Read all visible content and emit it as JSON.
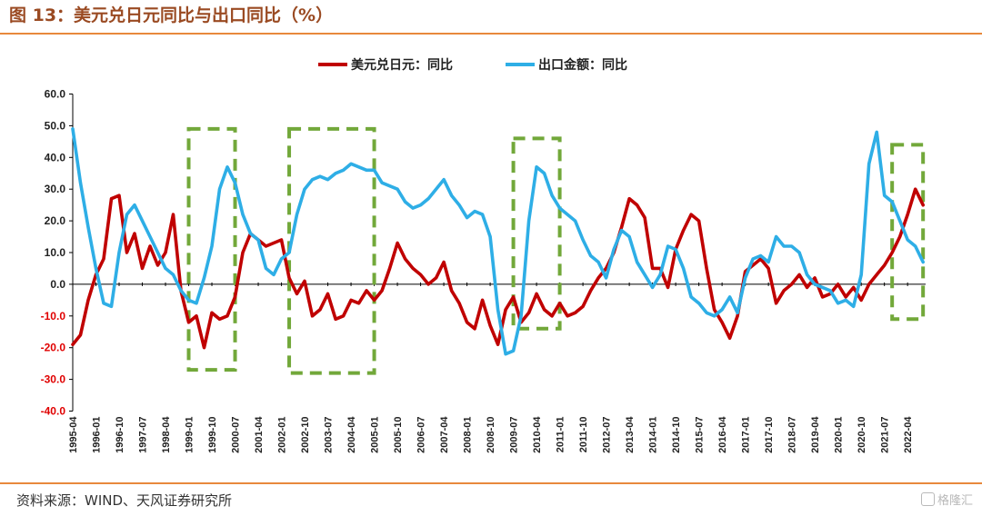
{
  "header": {
    "title": "图 13：美元兑日元同比与出口同比（%）"
  },
  "footer": {
    "source": "资料来源：WIND、天风证券研究所",
    "watermark": "格隆汇"
  },
  "colors": {
    "usdjpy": "#c00000",
    "exports": "#2eaee6",
    "box": "#72a83a",
    "negative_tick": "#e00000",
    "positive_tick": "#222222",
    "rule": "#e8893c"
  },
  "chart_data": {
    "type": "line",
    "legend_position": "top-center",
    "ylim": [
      -40,
      60
    ],
    "yticks": [
      "60.0",
      "50.0",
      "40.0",
      "30.0",
      "20.0",
      "10.0",
      "0.0",
      "-10.0",
      "-20.0",
      "-30.0",
      "-40.0"
    ],
    "xticks": [
      "1995-04",
      "1996-01",
      "1996-10",
      "1997-07",
      "1998-04",
      "1999-01",
      "1999-10",
      "2000-07",
      "2001-04",
      "2002-01",
      "2002-10",
      "2003-07",
      "2004-04",
      "2005-01",
      "2005-10",
      "2006-07",
      "2007-04",
      "2008-01",
      "2008-10",
      "2009-07",
      "2010-04",
      "2011-01",
      "2011-10",
      "2012-07",
      "2013-04",
      "2014-01",
      "2014-10",
      "2015-07",
      "2016-04",
      "2017-01",
      "2017-10",
      "2018-07",
      "2019-04",
      "2020-01",
      "2020-10",
      "2021-07",
      "2022-04"
    ],
    "series": [
      {
        "name": "美元兑日元：同比",
        "color": "#c00000",
        "points": [
          [
            "1995-04",
            -19
          ],
          [
            "1995-07",
            -16
          ],
          [
            "1995-10",
            -5
          ],
          [
            "1996-01",
            3
          ],
          [
            "1996-04",
            8
          ],
          [
            "1996-07",
            27
          ],
          [
            "1996-10",
            28
          ],
          [
            "1997-01",
            10
          ],
          [
            "1997-04",
            16
          ],
          [
            "1997-07",
            5
          ],
          [
            "1997-10",
            12
          ],
          [
            "1998-01",
            6
          ],
          [
            "1998-04",
            10
          ],
          [
            "1998-07",
            22
          ],
          [
            "1998-10",
            -2
          ],
          [
            "1999-01",
            -12
          ],
          [
            "1999-04",
            -10
          ],
          [
            "1999-07",
            -20
          ],
          [
            "1999-10",
            -9
          ],
          [
            "2000-01",
            -11
          ],
          [
            "2000-04",
            -10
          ],
          [
            "2000-07",
            -4
          ],
          [
            "2000-10",
            10
          ],
          [
            "2001-01",
            16
          ],
          [
            "2001-04",
            14
          ],
          [
            "2001-07",
            12
          ],
          [
            "2001-10",
            13
          ],
          [
            "2002-01",
            14
          ],
          [
            "2002-04",
            2
          ],
          [
            "2002-07",
            -3
          ],
          [
            "2002-10",
            1
          ],
          [
            "2003-01",
            -10
          ],
          [
            "2003-04",
            -8
          ],
          [
            "2003-07",
            -3
          ],
          [
            "2003-10",
            -11
          ],
          [
            "2004-01",
            -10
          ],
          [
            "2004-04",
            -5
          ],
          [
            "2004-07",
            -6
          ],
          [
            "2004-10",
            -2
          ],
          [
            "2005-01",
            -5
          ],
          [
            "2005-04",
            -2
          ],
          [
            "2005-07",
            5
          ],
          [
            "2005-10",
            13
          ],
          [
            "2006-01",
            8
          ],
          [
            "2006-04",
            5
          ],
          [
            "2006-07",
            3
          ],
          [
            "2006-10",
            0
          ],
          [
            "2007-01",
            2
          ],
          [
            "2007-04",
            7
          ],
          [
            "2007-07",
            -2
          ],
          [
            "2007-10",
            -6
          ],
          [
            "2008-01",
            -12
          ],
          [
            "2008-04",
            -14
          ],
          [
            "2008-07",
            -5
          ],
          [
            "2008-10",
            -13
          ],
          [
            "2009-01",
            -19
          ],
          [
            "2009-04",
            -8
          ],
          [
            "2009-07",
            -4
          ],
          [
            "2009-10",
            -12
          ],
          [
            "2010-01",
            -9
          ],
          [
            "2010-04",
            -3
          ],
          [
            "2010-07",
            -8
          ],
          [
            "2010-10",
            -10
          ],
          [
            "2011-01",
            -6
          ],
          [
            "2011-04",
            -10
          ],
          [
            "2011-07",
            -9
          ],
          [
            "2011-10",
            -7
          ],
          [
            "2012-01",
            -2
          ],
          [
            "2012-04",
            2
          ],
          [
            "2012-07",
            5
          ],
          [
            "2012-10",
            10
          ],
          [
            "2013-01",
            18
          ],
          [
            "2013-04",
            27
          ],
          [
            "2013-07",
            25
          ],
          [
            "2013-10",
            21
          ],
          [
            "2014-01",
            5
          ],
          [
            "2014-04",
            5
          ],
          [
            "2014-07",
            -1
          ],
          [
            "2014-10",
            11
          ],
          [
            "2015-01",
            17
          ],
          [
            "2015-04",
            22
          ],
          [
            "2015-07",
            20
          ],
          [
            "2015-10",
            5
          ],
          [
            "2016-01",
            -8
          ],
          [
            "2016-04",
            -12
          ],
          [
            "2016-07",
            -17
          ],
          [
            "2016-10",
            -10
          ],
          [
            "2017-01",
            4
          ],
          [
            "2017-04",
            6
          ],
          [
            "2017-07",
            8
          ],
          [
            "2017-10",
            5
          ],
          [
            "2018-01",
            -6
          ],
          [
            "2018-04",
            -2
          ],
          [
            "2018-07",
            0
          ],
          [
            "2018-10",
            3
          ],
          [
            "2019-01",
            -1
          ],
          [
            "2019-04",
            2
          ],
          [
            "2019-07",
            -4
          ],
          [
            "2019-10",
            -3
          ],
          [
            "2020-01",
            0
          ],
          [
            "2020-04",
            -4
          ],
          [
            "2020-07",
            -1
          ],
          [
            "2020-10",
            -5
          ],
          [
            "2021-01",
            0
          ],
          [
            "2021-04",
            3
          ],
          [
            "2021-07",
            6
          ],
          [
            "2021-10",
            10
          ],
          [
            "2022-01",
            15
          ],
          [
            "2022-04",
            22
          ],
          [
            "2022-07",
            30
          ],
          [
            "2022-10",
            25
          ]
        ]
      },
      {
        "name": "出口金额：同比",
        "color": "#2eaee6",
        "points": [
          [
            "1995-04",
            49
          ],
          [
            "1995-07",
            32
          ],
          [
            "1995-10",
            18
          ],
          [
            "1996-01",
            5
          ],
          [
            "1996-04",
            -6
          ],
          [
            "1996-07",
            -7
          ],
          [
            "1996-10",
            10
          ],
          [
            "1997-01",
            22
          ],
          [
            "1997-04",
            25
          ],
          [
            "1997-07",
            20
          ],
          [
            "1997-10",
            15
          ],
          [
            "1998-01",
            10
          ],
          [
            "1998-04",
            5
          ],
          [
            "1998-07",
            3
          ],
          [
            "1998-10",
            -2
          ],
          [
            "1999-01",
            -5
          ],
          [
            "1999-04",
            -6
          ],
          [
            "1999-07",
            2
          ],
          [
            "1999-10",
            12
          ],
          [
            "2000-01",
            30
          ],
          [
            "2000-04",
            37
          ],
          [
            "2000-07",
            32
          ],
          [
            "2000-10",
            22
          ],
          [
            "2001-01",
            16
          ],
          [
            "2001-04",
            14
          ],
          [
            "2001-07",
            5
          ],
          [
            "2001-10",
            3
          ],
          [
            "2002-01",
            8
          ],
          [
            "2002-04",
            10
          ],
          [
            "2002-07",
            22
          ],
          [
            "2002-10",
            30
          ],
          [
            "2003-01",
            33
          ],
          [
            "2003-04",
            34
          ],
          [
            "2003-07",
            33
          ],
          [
            "2003-10",
            35
          ],
          [
            "2004-01",
            36
          ],
          [
            "2004-04",
            38
          ],
          [
            "2004-07",
            37
          ],
          [
            "2004-10",
            36
          ],
          [
            "2005-01",
            36
          ],
          [
            "2005-04",
            32
          ],
          [
            "2005-07",
            31
          ],
          [
            "2005-10",
            30
          ],
          [
            "2006-01",
            26
          ],
          [
            "2006-04",
            24
          ],
          [
            "2006-07",
            25
          ],
          [
            "2006-10",
            27
          ],
          [
            "2007-01",
            30
          ],
          [
            "2007-04",
            33
          ],
          [
            "2007-07",
            28
          ],
          [
            "2007-10",
            25
          ],
          [
            "2008-01",
            21
          ],
          [
            "2008-04",
            23
          ],
          [
            "2008-07",
            22
          ],
          [
            "2008-10",
            15
          ],
          [
            "2009-01",
            -8
          ],
          [
            "2009-04",
            -22
          ],
          [
            "2009-07",
            -21
          ],
          [
            "2009-10",
            -10
          ],
          [
            "2010-01",
            20
          ],
          [
            "2010-04",
            37
          ],
          [
            "2010-07",
            35
          ],
          [
            "2010-10",
            28
          ],
          [
            "2011-01",
            24
          ],
          [
            "2011-04",
            22
          ],
          [
            "2011-07",
            20
          ],
          [
            "2011-10",
            14
          ],
          [
            "2012-01",
            9
          ],
          [
            "2012-04",
            7
          ],
          [
            "2012-07",
            2
          ],
          [
            "2012-10",
            11
          ],
          [
            "2013-01",
            17
          ],
          [
            "2013-04",
            15
          ],
          [
            "2013-07",
            7
          ],
          [
            "2013-10",
            3
          ],
          [
            "2014-01",
            -1
          ],
          [
            "2014-04",
            3
          ],
          [
            "2014-07",
            12
          ],
          [
            "2014-10",
            11
          ],
          [
            "2015-01",
            5
          ],
          [
            "2015-04",
            -4
          ],
          [
            "2015-07",
            -6
          ],
          [
            "2015-10",
            -9
          ],
          [
            "2016-01",
            -10
          ],
          [
            "2016-04",
            -8
          ],
          [
            "2016-07",
            -4
          ],
          [
            "2016-10",
            -9
          ],
          [
            "2017-01",
            2
          ],
          [
            "2017-04",
            8
          ],
          [
            "2017-07",
            9
          ],
          [
            "2017-10",
            7
          ],
          [
            "2018-01",
            15
          ],
          [
            "2018-04",
            12
          ],
          [
            "2018-07",
            12
          ],
          [
            "2018-10",
            10
          ],
          [
            "2019-01",
            3
          ],
          [
            "2019-04",
            0
          ],
          [
            "2019-07",
            -1
          ],
          [
            "2019-10",
            -2
          ],
          [
            "2020-01",
            -6
          ],
          [
            "2020-04",
            -5
          ],
          [
            "2020-07",
            -7
          ],
          [
            "2020-10",
            3
          ],
          [
            "2021-01",
            38
          ],
          [
            "2021-04",
            48
          ],
          [
            "2021-07",
            28
          ],
          [
            "2021-10",
            26
          ],
          [
            "2022-01",
            20
          ],
          [
            "2022-04",
            14
          ],
          [
            "2022-07",
            12
          ],
          [
            "2022-10",
            7
          ]
        ]
      }
    ],
    "highlight_boxes": [
      {
        "from": "1999-01",
        "to": "2000-07",
        "ymin": -27,
        "ymax": 49
      },
      {
        "from": "2002-04",
        "to": "2005-01",
        "ymin": -28,
        "ymax": 49
      },
      {
        "from": "2009-07",
        "to": "2011-01",
        "ymin": -14,
        "ymax": 46
      },
      {
        "from": "2021-10",
        "to": "2022-10",
        "ymin": -11,
        "ymax": 44
      }
    ]
  }
}
